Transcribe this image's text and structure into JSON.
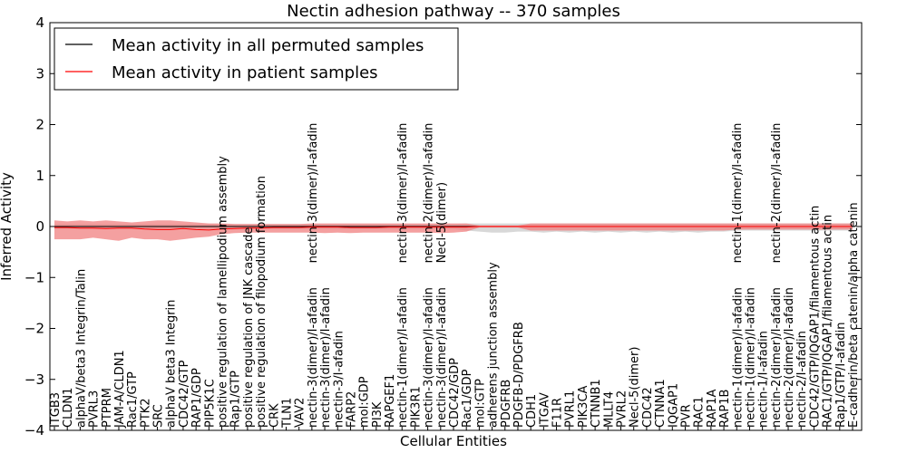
{
  "chart_data": {
    "type": "line",
    "title": "Nectin adhesion pathway -- 370 samples",
    "xlabel": "Cellular Entities",
    "ylabel": "Inferred Activity",
    "ylim": [
      -4,
      4
    ],
    "yticks": [
      4,
      3,
      2,
      1,
      0,
      -1,
      -2,
      -3,
      -4
    ],
    "ytick_labels": [
      "4",
      "3",
      "2",
      "1",
      "0",
      "−1",
      "−2",
      "−3",
      "−4"
    ],
    "grid": false,
    "legend_position": "top-left",
    "colors": {
      "permuted_line": "#000000",
      "patient_line": "#ff0000",
      "patient_band": "#f08080",
      "permuted_band": "#c8c8c8"
    },
    "categories": [
      "ITGB3",
      "CLDN1",
      "alphaV/beta3 Integrin/Talin",
      "PVRL3",
      "PTPRM",
      "JAM-A/CLDN1",
      "Rac1/GTP",
      "PTK2",
      "SRC",
      "alphaV beta3 Integrin",
      "CDC42/GTP",
      "RAP1/GDP",
      "PIP5K1C",
      "positive regulation of lamellipodium assembly",
      "Rap1/GTP",
      "positive regulation of JNK cascade",
      "positive regulation of filopodium formation",
      "CRK",
      "TLN1",
      "VAV2",
      "nectin-3(dimer)/I-afadin",
      "nectin-3(dimer)/I-afadin",
      "nectin-3/I-afadin",
      "FARP2",
      "mol:GDP",
      "PI3K",
      "RAPGEF1",
      "nectin-1(dimer)/I-afadin",
      "PIK3R1",
      "nectin-3(dimer)/I-afadin",
      "nectin-3(dimer)/I-afadin",
      "CDC42/GDP",
      "Rac1/GDP",
      "mol:GTP",
      "adherens junction assembly",
      "PDGFRB",
      "PDGFB-D/PDGFRB",
      "CDH1",
      "ITGAV",
      "F11R",
      "PVRL1",
      "PIK3CA",
      "CTNNB1",
      "MLLT4",
      "PVRL2",
      "Necl-5(dimer)",
      "CDC42",
      "CTNNA1",
      "IQGAP1",
      "PVR",
      "RAC1",
      "RAP1A",
      "RAP1B",
      "nectin-1(dimer)/I-afadin",
      "nectin-1(dimer)/I-afadin",
      "nectin-1/I-afadin",
      "nectin-2(dimer)/I-afadin",
      "nectin-2(dimer)/I-afadin",
      "nectin-2/I-afadin",
      "CDC42/GTP/IQGAP1/filamentous actin",
      "RAC1/GTP/IQGAP1/filamentous actin",
      "Rap1/GTP/I-afadin",
      "E-cadherin/beta catenin/alpha catenin"
    ],
    "upper_labels": [
      {
        "index": 20,
        "text": "nectin-3(dimer)/I-afadin"
      },
      {
        "index": 27,
        "text": "nectin-3(dimer)/I-afadin"
      },
      {
        "index": 29,
        "text": "nectin-2(dimer)/I-afadin"
      },
      {
        "index": 30,
        "text": "Necl-5(dimer)"
      },
      {
        "index": 53,
        "text": "nectin-1(dimer)/I-afadin"
      },
      {
        "index": 56,
        "text": "nectin-2(dimer)/I-afadin"
      }
    ],
    "series": [
      {
        "name": "Mean activity in all permuted samples",
        "values": [
          0,
          0,
          0,
          0,
          0,
          0,
          0,
          0,
          0,
          0,
          0,
          0,
          0,
          0,
          0,
          0,
          0,
          0,
          0,
          0,
          0,
          0,
          0,
          0,
          0,
          0,
          0,
          0,
          0,
          0,
          0,
          0,
          0,
          0,
          0,
          0,
          0,
          0,
          0,
          0,
          0,
          0,
          0,
          0,
          0,
          0,
          0,
          0,
          0,
          0,
          0,
          0,
          0,
          0,
          0,
          0,
          0,
          0,
          0,
          0,
          0,
          0,
          0
        ],
        "band_low": [
          -0.05,
          -0.05,
          -0.05,
          -0.05,
          -0.05,
          -0.05,
          -0.05,
          -0.05,
          -0.05,
          -0.05,
          -0.05,
          -0.05,
          -0.05,
          -0.05,
          -0.05,
          -0.05,
          -0.05,
          -0.05,
          -0.05,
          -0.05,
          -0.05,
          -0.05,
          -0.05,
          -0.05,
          -0.05,
          -0.05,
          -0.05,
          -0.05,
          -0.05,
          -0.05,
          -0.05,
          -0.05,
          -0.08,
          -0.1,
          -0.12,
          -0.12,
          -0.1,
          -0.1,
          -0.12,
          -0.1,
          -0.12,
          -0.1,
          -0.12,
          -0.1,
          -0.12,
          -0.1,
          -0.12,
          -0.1,
          -0.12,
          -0.1,
          -0.12,
          -0.1,
          -0.1,
          -0.08,
          -0.08,
          -0.08,
          -0.08,
          -0.08,
          -0.08,
          -0.08,
          -0.08,
          -0.08,
          -0.08
        ],
        "band_high": [
          0.05,
          0.05,
          0.05,
          0.05,
          0.05,
          0.05,
          0.05,
          0.05,
          0.05,
          0.05,
          0.05,
          0.05,
          0.05,
          0.05,
          0.05,
          0.05,
          0.05,
          0.05,
          0.05,
          0.05,
          0.05,
          0.05,
          0.05,
          0.05,
          0.05,
          0.05,
          0.05,
          0.05,
          0.05,
          0.05,
          0.05,
          0.05,
          0.06,
          0.06,
          0.06,
          0.06,
          0.06,
          0.06,
          0.06,
          0.06,
          0.06,
          0.06,
          0.06,
          0.06,
          0.06,
          0.06,
          0.06,
          0.06,
          0.06,
          0.06,
          0.06,
          0.06,
          0.06,
          0.06,
          0.06,
          0.06,
          0.06,
          0.06,
          0.06,
          0.06,
          0.06,
          0.06,
          0.06
        ]
      },
      {
        "name": "Mean activity in patient samples",
        "values": [
          -0.02,
          -0.02,
          -0.03,
          -0.03,
          -0.04,
          -0.03,
          -0.03,
          -0.05,
          -0.06,
          -0.06,
          -0.04,
          -0.06,
          -0.07,
          -0.05,
          -0.04,
          -0.03,
          -0.03,
          -0.02,
          -0.02,
          -0.02,
          -0.01,
          -0.01,
          -0.01,
          -0.02,
          -0.02,
          -0.02,
          -0.01,
          -0.01,
          -0.01,
          -0.01,
          -0.01,
          -0.01,
          -0.01,
          0,
          0,
          0,
          0,
          0,
          0,
          0,
          0,
          0,
          0,
          0,
          0,
          0,
          0,
          0,
          0,
          0,
          0,
          0,
          0,
          0,
          0,
          0,
          0,
          0,
          0,
          0,
          0,
          0,
          0
        ],
        "band_low": [
          -0.25,
          -0.25,
          -0.25,
          -0.22,
          -0.25,
          -0.28,
          -0.22,
          -0.25,
          -0.25,
          -0.28,
          -0.25,
          -0.22,
          -0.2,
          -0.15,
          -0.13,
          -0.12,
          -0.12,
          -0.12,
          -0.12,
          -0.12,
          -0.12,
          -0.13,
          -0.12,
          -0.13,
          -0.12,
          -0.12,
          -0.12,
          -0.12,
          -0.12,
          -0.12,
          -0.13,
          -0.12,
          -0.1,
          -0.02,
          -0.02,
          -0.02,
          -0.02,
          -0.08,
          -0.08,
          -0.08,
          -0.08,
          -0.08,
          -0.08,
          -0.08,
          -0.08,
          -0.08,
          -0.08,
          -0.08,
          -0.08,
          -0.08,
          -0.08,
          -0.08,
          -0.08,
          -0.06,
          -0.06,
          -0.06,
          -0.06,
          -0.06,
          -0.06,
          -0.06,
          -0.06,
          -0.06,
          -0.06
        ],
        "band_high": [
          0.12,
          0.1,
          0.12,
          0.1,
          0.12,
          0.1,
          0.08,
          0.1,
          0.12,
          0.12,
          0.1,
          0.08,
          0.06,
          0.06,
          0.05,
          0.05,
          0.05,
          0.05,
          0.05,
          0.05,
          0.06,
          0.06,
          0.06,
          0.06,
          0.06,
          0.06,
          0.06,
          0.06,
          0.06,
          0.06,
          0.06,
          0.06,
          0.06,
          0.02,
          0.02,
          0.02,
          0.02,
          0.06,
          0.06,
          0.06,
          0.06,
          0.06,
          0.06,
          0.06,
          0.06,
          0.06,
          0.06,
          0.06,
          0.06,
          0.06,
          0.06,
          0.06,
          0.06,
          0.06,
          0.06,
          0.06,
          0.06,
          0.06,
          0.06,
          0.06,
          0.06,
          0.06,
          0.06
        ]
      }
    ]
  }
}
